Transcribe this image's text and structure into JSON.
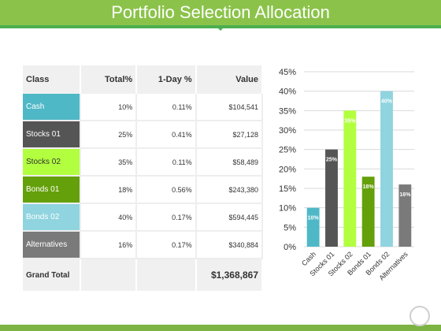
{
  "title": "Portfolio Selection Allocation",
  "table": {
    "headers": [
      "Class",
      "Total%",
      "1-Day %",
      "Value"
    ],
    "rows": [
      {
        "class": "Cash",
        "total": "10%",
        "day": "0.11%",
        "value": "$104,541",
        "color": "#4fb8c6",
        "text_color": "#ffffff"
      },
      {
        "class": "Stocks 01",
        "total": "25%",
        "day": "0.41%",
        "value": "$27,128",
        "color": "#555555",
        "text_color": "#ffffff"
      },
      {
        "class": "Stocks 02",
        "total": "35%",
        "day": "0.11%",
        "value": "$58,489",
        "color": "#b2ff3f",
        "text_color": "#333333"
      },
      {
        "class": "Bonds 01",
        "total": "18%",
        "day": "0.56%",
        "value": "$243,380",
        "color": "#64a00a",
        "text_color": "#ffffff"
      },
      {
        "class": "Bonds 02",
        "total": "40%",
        "day": "0.17%",
        "value": "$594,445",
        "color": "#8fd4df",
        "text_color": "#ffffff"
      },
      {
        "class": "Alternatives",
        "total": "16%",
        "day": "0.17%",
        "value": "$340,884",
        "color": "#7a7a7a",
        "text_color": "#ffffff"
      }
    ],
    "total_label": "Grand Total",
    "total_value": "$1,368,867"
  },
  "chart_data": {
    "type": "bar",
    "categories": [
      "Cash",
      "Stocks 01",
      "Stocks 02",
      "Bonds 01",
      "Bonds 02",
      "Alternatives"
    ],
    "values": [
      10,
      25,
      35,
      18,
      40,
      16
    ],
    "data_labels": [
      "10%",
      "25%",
      "35%",
      "18%",
      "40%",
      "16%"
    ],
    "colors": [
      "#4fb8c6",
      "#555555",
      "#b2ff3f",
      "#64a00a",
      "#8fd4df",
      "#7a7a7a"
    ],
    "ylim": [
      0,
      45
    ],
    "yticks": [
      "0%",
      "5%",
      "10%",
      "15%",
      "20%",
      "25%",
      "30%",
      "35%",
      "40%",
      "45%"
    ],
    "grid": true
  }
}
